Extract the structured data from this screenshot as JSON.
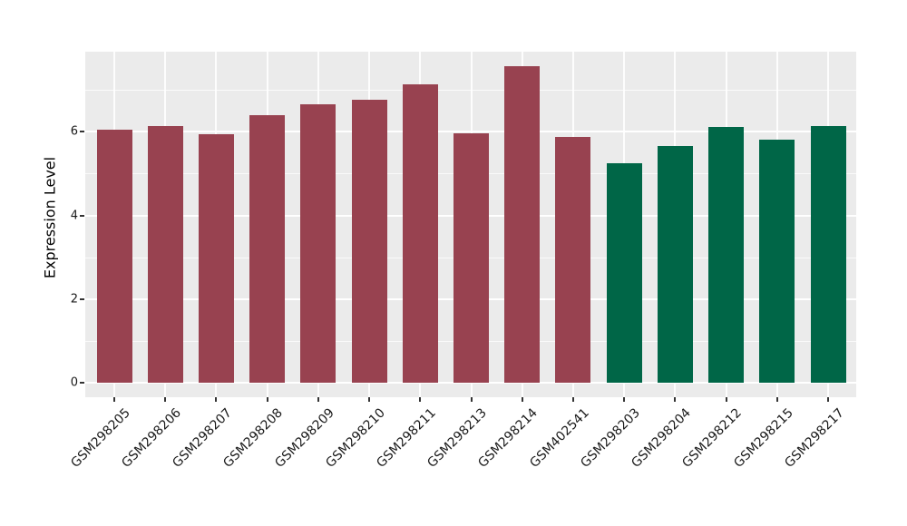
{
  "chart_data": {
    "type": "bar",
    "title": "",
    "xlabel": "",
    "ylabel": "Expression Level",
    "categories": [
      "GSM298205",
      "GSM298206",
      "GSM298207",
      "GSM298208",
      "GSM298209",
      "GSM298210",
      "GSM298211",
      "GSM298213",
      "GSM298214",
      "GSM402541",
      "GSM298203",
      "GSM298204",
      "GSM298212",
      "GSM298215",
      "GSM298217"
    ],
    "values": [
      6.05,
      6.14,
      5.95,
      6.4,
      6.66,
      6.77,
      7.14,
      5.96,
      7.56,
      5.88,
      5.25,
      5.66,
      6.11,
      5.8,
      6.14
    ],
    "bar_colors": [
      "#984250",
      "#984250",
      "#984250",
      "#984250",
      "#984250",
      "#984250",
      "#984250",
      "#984250",
      "#984250",
      "#984250",
      "#006647",
      "#006647",
      "#006647",
      "#006647",
      "#006647"
    ],
    "group_colors": {
      "maroon": "#984250",
      "green": "#006647"
    },
    "yticks": [
      0,
      2,
      4,
      6
    ],
    "minor_yticks": [
      1,
      3,
      5,
      7
    ],
    "ylim": [
      -0.34,
      7.91
    ],
    "bar_width_ratio": 0.7,
    "x_tick_rotation": 45,
    "legend": "none",
    "grid": "on",
    "style": {
      "panel_background": "#EBEBEB",
      "grid_color": "#FFFFFF",
      "tick_color": "#333333",
      "text_color": "#1a1a1a",
      "figure_background": "#FFFFFF"
    }
  }
}
